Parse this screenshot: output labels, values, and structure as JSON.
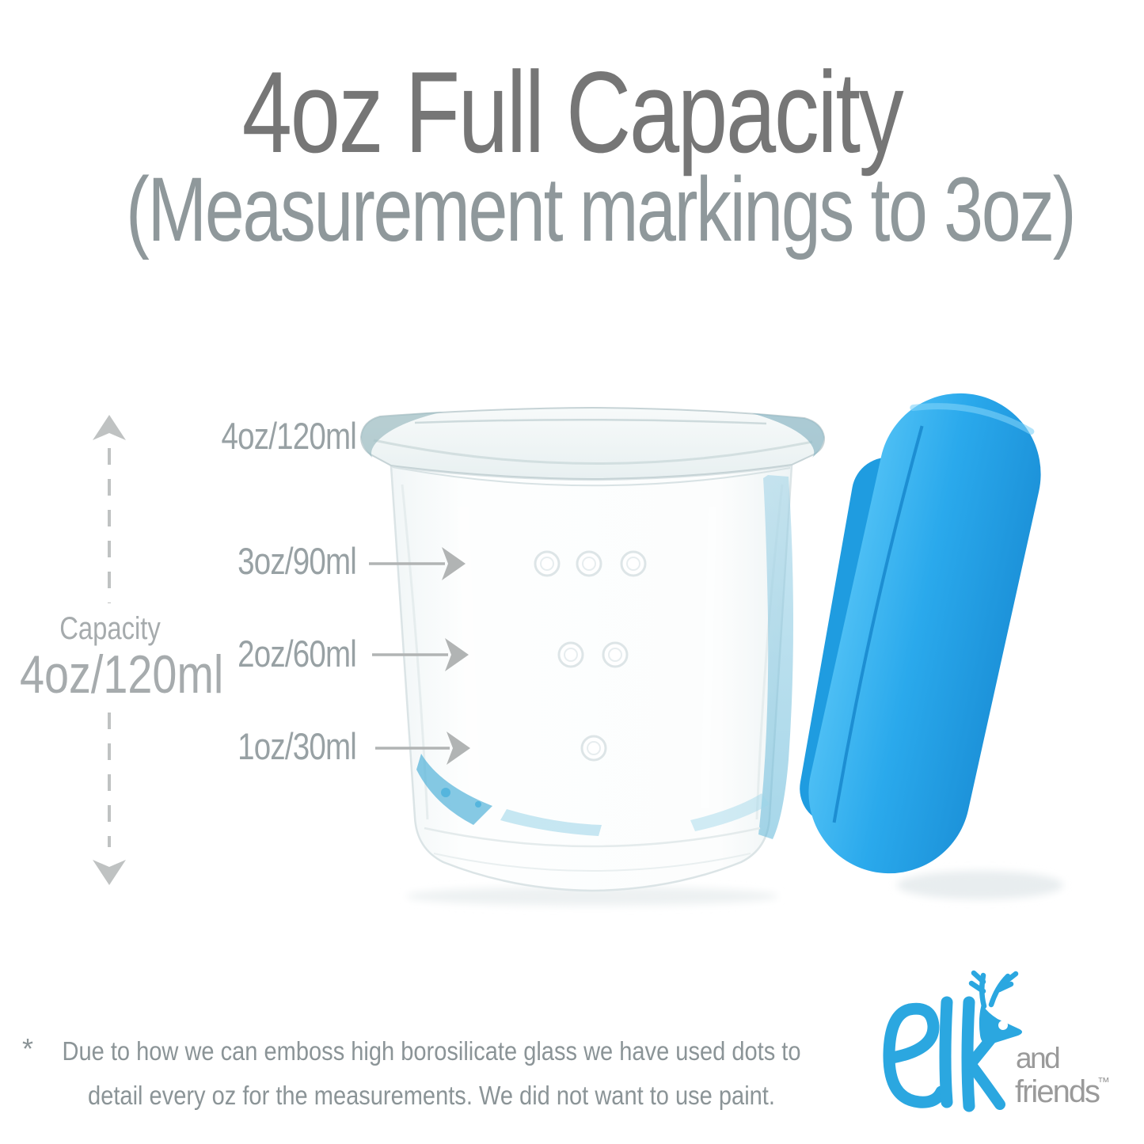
{
  "header": {
    "title": "4oz Full Capacity",
    "subtitle": "(Measurement markings to 3oz)"
  },
  "capacity": {
    "caption": "Capacity",
    "value": "4oz/120ml"
  },
  "measurements": [
    {
      "label": "4oz/120ml",
      "oz": 4,
      "ml": 120,
      "dots": 0,
      "has_arrow": false
    },
    {
      "label": "3oz/90ml",
      "oz": 3,
      "ml": 90,
      "dots": 3,
      "has_arrow": true
    },
    {
      "label": "2oz/60ml",
      "oz": 2,
      "ml": 60,
      "dots": 2,
      "has_arrow": true
    },
    {
      "label": "1oz/30ml",
      "oz": 1,
      "ml": 30,
      "dots": 1,
      "has_arrow": true
    }
  ],
  "footnote": {
    "marker": "*",
    "line1": "Due to how we can emboss high borosilicate glass we have used dots to",
    "line2": "detail every oz for the measurements. We did not want to use paint."
  },
  "logo": {
    "brand": "elk",
    "and": "and",
    "friends": "friends",
    "trademark": "™",
    "icon": "deer-antlers-icon"
  },
  "product": {
    "item": "glass jar with blue silicone lid",
    "marking_style": "embossed dots"
  },
  "colors": {
    "title_gray": "#767676",
    "subtitle_gray": "#8f989b",
    "label_gray": "#98a1a4",
    "capacity_gray": "#a6abad",
    "arrow_gray": "#b1b4b4",
    "dash_gray": "#bfc2c2",
    "footnote_gray": "#8b9497",
    "lid_blue": "#2aa9ec",
    "logo_blue": "#2ba7e0",
    "logo_gray": "#9a9a9a"
  }
}
